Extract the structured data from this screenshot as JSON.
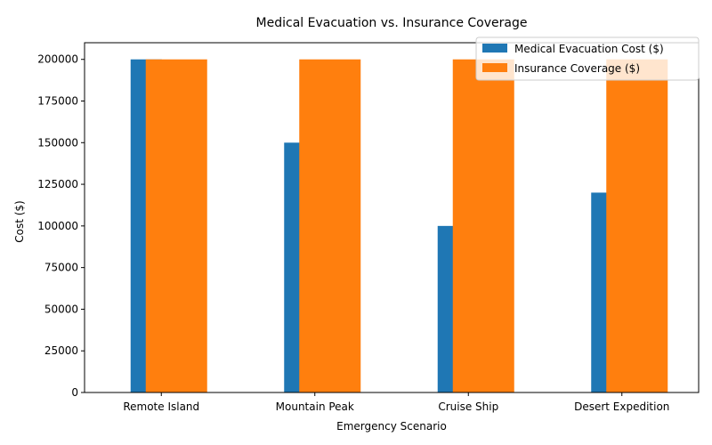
{
  "chart_data": {
    "type": "bar",
    "title": "Medical Evacuation vs. Insurance Coverage",
    "xlabel": "Emergency Scenario",
    "ylabel": "Cost ($)",
    "categories": [
      "Remote Island",
      "Mountain Peak",
      "Cruise Ship",
      "Desert Expedition"
    ],
    "series": [
      {
        "name": "Medical Evacuation Cost ($)",
        "color": "#1f77b4",
        "values": [
          200000,
          150000,
          100000,
          120000
        ]
      },
      {
        "name": "Insurance Coverage ($)",
        "color": "#ff7f0e",
        "values": [
          200000,
          200000,
          200000,
          200000
        ]
      }
    ],
    "ylim": [
      0,
      210000
    ],
    "yticks": [
      0,
      25000,
      50000,
      75000,
      100000,
      125000,
      150000,
      175000,
      200000
    ],
    "grid": false,
    "legend_position": "top-right"
  }
}
